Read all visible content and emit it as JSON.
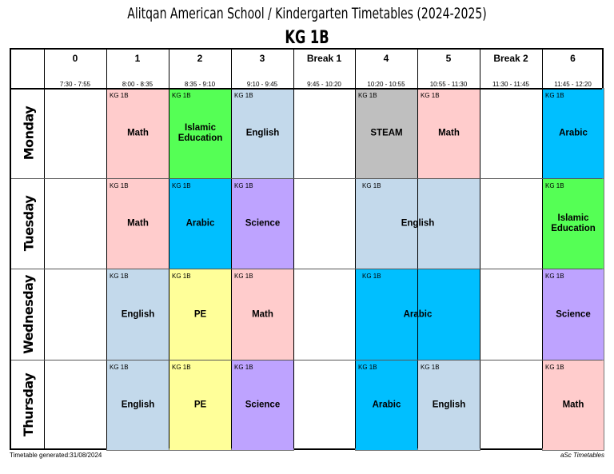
{
  "title": "Alitqan American School / Kindergarten Timetables (2024-2025)",
  "class_name": "KG 1B",
  "periods": [
    {
      "label": "0",
      "time": "7:30 - 7:55"
    },
    {
      "label": "1",
      "time": "8:00 - 8:35"
    },
    {
      "label": "2",
      "time": "8:35 - 9:10"
    },
    {
      "label": "3",
      "time": "9:10 - 9:45"
    },
    {
      "label": "Break 1",
      "time": "9:45 - 10:20"
    },
    {
      "label": "4",
      "time": "10:20 - 10:55"
    },
    {
      "label": "5",
      "time": "10:55 - 11:30"
    },
    {
      "label": "Break 2",
      "time": "11:30 - 11:45"
    },
    {
      "label": "6",
      "time": "11:45 - 12:20"
    }
  ],
  "days": [
    "Monday",
    "Tuesday",
    "Wednesday",
    "Thursday"
  ],
  "subject_colors": {
    "Math": "#ffcccc",
    "Islamic Education": "#55ff55",
    "English": "#c3d9eb",
    "STEAM": "#bfbfbf",
    "Arabic": "#00bfff",
    "Science": "#bea3ff",
    "PE": "#ffff99"
  },
  "lessons": [
    {
      "day": "Monday",
      "periods": [
        "1"
      ],
      "class": "KG 1B",
      "subject": "Math"
    },
    {
      "day": "Monday",
      "periods": [
        "2"
      ],
      "class": "KG 1B",
      "subject": "Islamic Education"
    },
    {
      "day": "Monday",
      "periods": [
        "3"
      ],
      "class": "KG 1B",
      "subject": "English"
    },
    {
      "day": "Monday",
      "periods": [
        "4"
      ],
      "class": "KG 1B",
      "subject": "STEAM"
    },
    {
      "day": "Monday",
      "periods": [
        "5"
      ],
      "class": "KG 1B",
      "subject": "Math"
    },
    {
      "day": "Monday",
      "periods": [
        "6"
      ],
      "class": "KG 1B",
      "subject": "Arabic"
    },
    {
      "day": "Tuesday",
      "periods": [
        "1"
      ],
      "class": "KG 1B",
      "subject": "Math"
    },
    {
      "day": "Tuesday",
      "periods": [
        "2"
      ],
      "class": "KG 1B",
      "subject": "Arabic"
    },
    {
      "day": "Tuesday",
      "periods": [
        "3"
      ],
      "class": "KG 1B",
      "subject": "Science"
    },
    {
      "day": "Tuesday",
      "periods": [
        "4",
        "5"
      ],
      "class": "KG 1B",
      "subject": "English"
    },
    {
      "day": "Tuesday",
      "periods": [
        "6"
      ],
      "class": "KG 1B",
      "subject": "Islamic Education"
    },
    {
      "day": "Wednesday",
      "periods": [
        "1"
      ],
      "class": "KG 1B",
      "subject": "English"
    },
    {
      "day": "Wednesday",
      "periods": [
        "2"
      ],
      "class": "KG 1B",
      "subject": "PE"
    },
    {
      "day": "Wednesday",
      "periods": [
        "3"
      ],
      "class": "KG 1B",
      "subject": "Math"
    },
    {
      "day": "Wednesday",
      "periods": [
        "4",
        "5"
      ],
      "class": "KG 1B",
      "subject": "Arabic"
    },
    {
      "day": "Wednesday",
      "periods": [
        "6"
      ],
      "class": "KG 1B",
      "subject": "Science"
    },
    {
      "day": "Thursday",
      "periods": [
        "1"
      ],
      "class": "KG 1B",
      "subject": "English"
    },
    {
      "day": "Thursday",
      "periods": [
        "2"
      ],
      "class": "KG 1B",
      "subject": "PE"
    },
    {
      "day": "Thursday",
      "periods": [
        "3"
      ],
      "class": "KG 1B",
      "subject": "Science"
    },
    {
      "day": "Thursday",
      "periods": [
        "4"
      ],
      "class": "KG 1B",
      "subject": "Arabic"
    },
    {
      "day": "Thursday",
      "periods": [
        "5"
      ],
      "class": "KG 1B",
      "subject": "English"
    },
    {
      "day": "Thursday",
      "periods": [
        "6"
      ],
      "class": "KG 1B",
      "subject": "Math"
    }
  ],
  "footer": {
    "generated": "Timetable generated:31/08/2024",
    "brand": "aSc Timetables"
  }
}
